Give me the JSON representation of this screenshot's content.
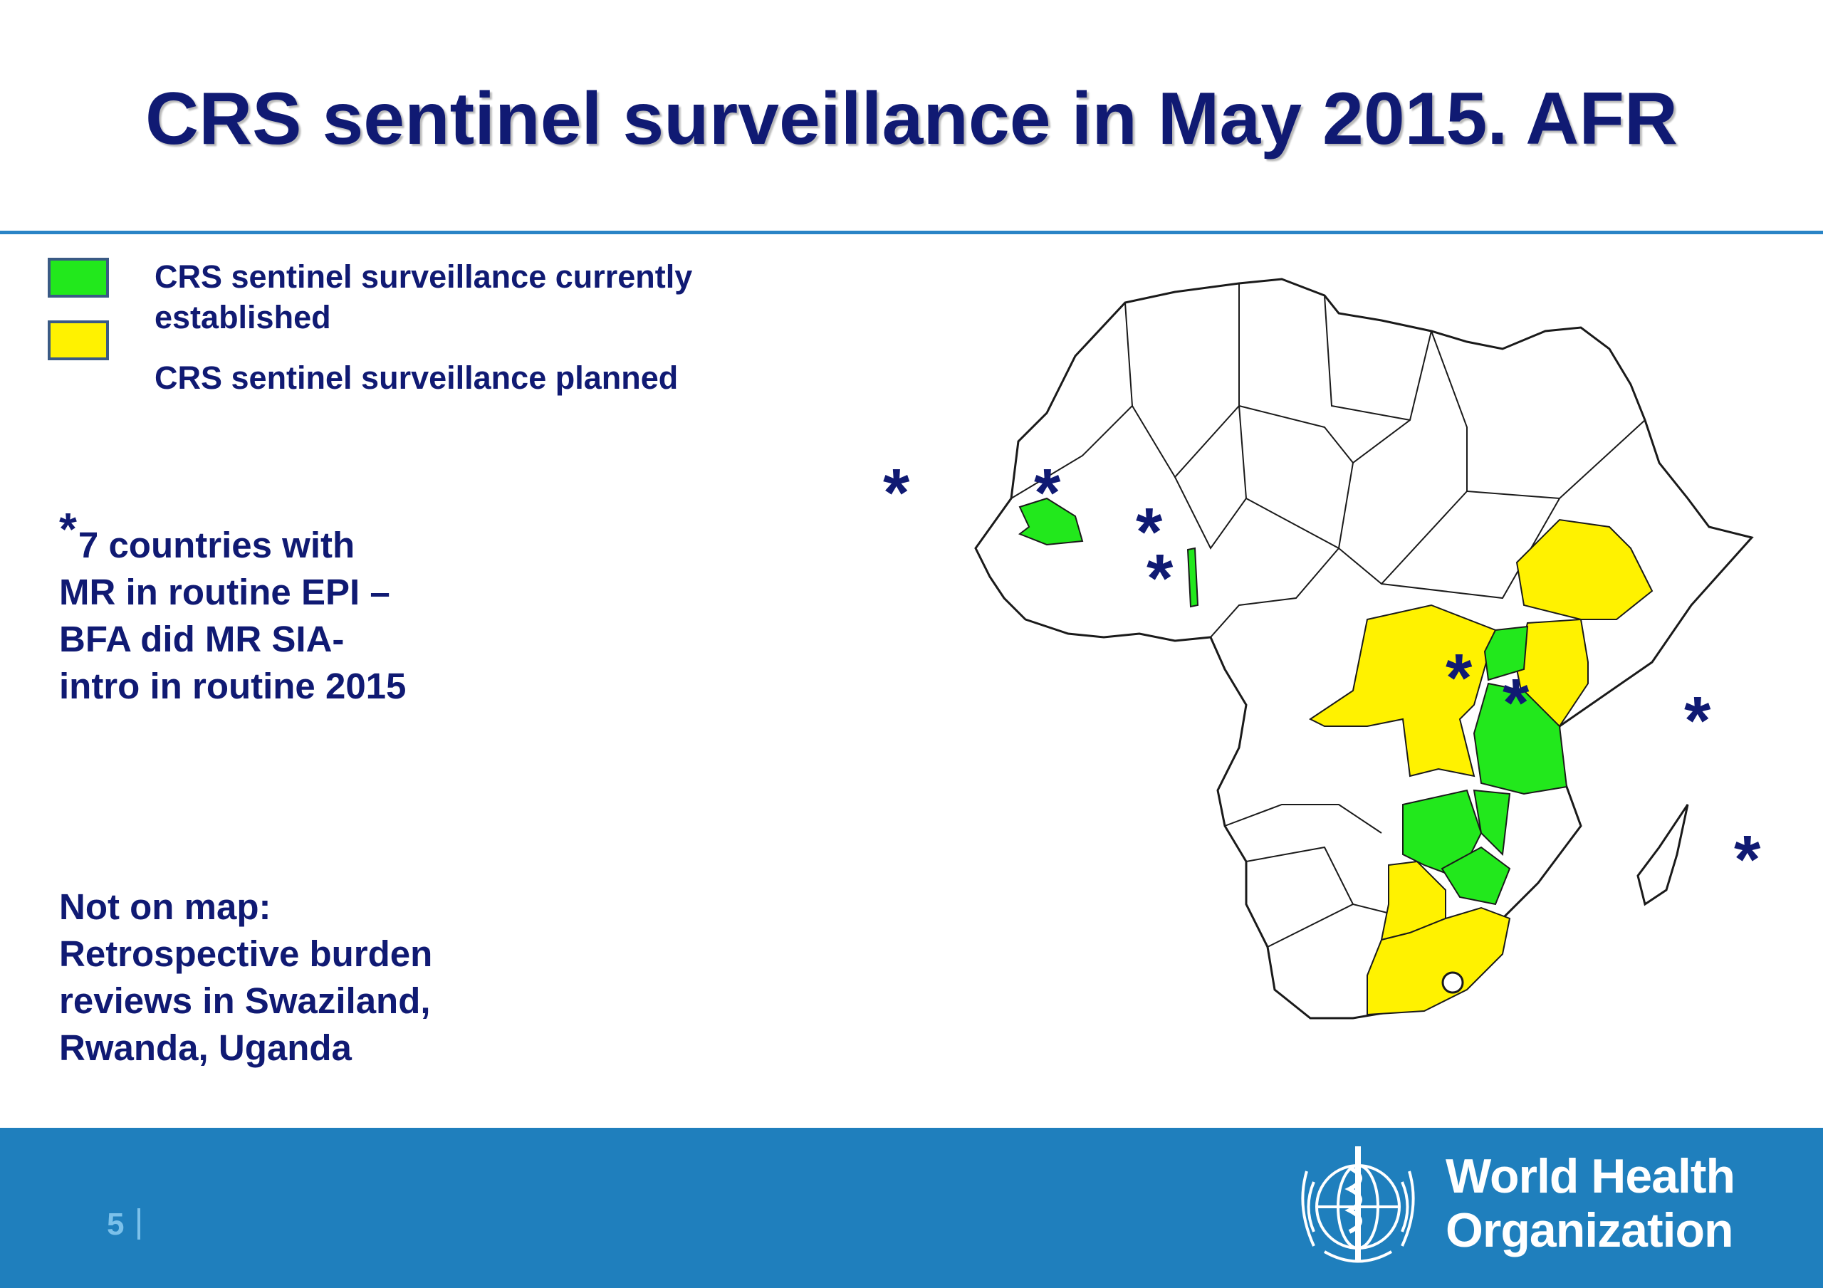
{
  "slide": {
    "title": "CRS sentinel surveillance in May 2015. AFR",
    "page_number": "5"
  },
  "legend": {
    "items": [
      {
        "label": "CRS sentinel surveillance currently established",
        "color": "#22e81c"
      },
      {
        "label": "CRS sentinel surveillance planned",
        "color": "#fff200"
      }
    ]
  },
  "notes": {
    "mr_note_star": "*",
    "mr_note": [
      "7 countries with",
      "MR in routine EPI –",
      "BFA did MR SIA-",
      "intro in routine 2015"
    ],
    "not_on_map": [
      "Not on map:",
      "Retrospective burden",
      "reviews in Swaziland,",
      "Rwanda, Uganda"
    ]
  },
  "map": {
    "region": "Africa",
    "established_color": "#22e81c",
    "planned_color": "#fff200",
    "asterisk_symbol": "*",
    "asterisk_color": "#101a73"
  },
  "footer": {
    "org_name_line1": "World Health",
    "org_name_line2": "Organization",
    "background_color": "#1f7fbd"
  }
}
